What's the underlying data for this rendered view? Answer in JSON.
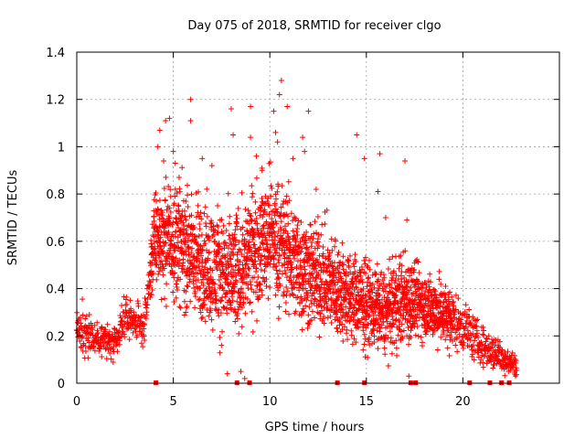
{
  "chart_data": {
    "type": "scatter",
    "title": "Day 075 of 2018, SRMTID for receiver clgo",
    "xlabel": "GPS time / hours",
    "ylabel": "SRMTID / TECUs",
    "xlim": [
      0,
      25
    ],
    "ylim": [
      0,
      1.4
    ],
    "x_ticks": [
      0,
      5,
      10,
      15,
      20
    ],
    "y_ticks": [
      0,
      0.2,
      0.4,
      0.6,
      0.8,
      1,
      1.2,
      1.4
    ],
    "x_tick_labels": [
      "0",
      "5",
      "10",
      "15",
      "20"
    ],
    "y_tick_labels": [
      "0",
      "0.2",
      "0.4",
      "0.6",
      "0.8",
      "1",
      "1.2",
      "1.4"
    ],
    "grid": true,
    "marker": "+",
    "color": "#ff0000",
    "series": [
      {
        "name": "SRMTID",
        "envelope": [
          {
            "x": 0.0,
            "low": 0.1,
            "high": 0.35
          },
          {
            "x": 0.5,
            "low": 0.08,
            "high": 0.34
          },
          {
            "x": 1.0,
            "low": 0.1,
            "high": 0.27
          },
          {
            "x": 1.5,
            "low": 0.08,
            "high": 0.28
          },
          {
            "x": 2.0,
            "low": 0.06,
            "high": 0.24
          },
          {
            "x": 2.5,
            "low": 0.17,
            "high": 0.38
          },
          {
            "x": 3.0,
            "low": 0.17,
            "high": 0.35
          },
          {
            "x": 3.5,
            "low": 0.14,
            "high": 0.32
          },
          {
            "x": 4.0,
            "low": 0.35,
            "high": 0.85
          },
          {
            "x": 5.0,
            "low": 0.3,
            "high": 0.9
          },
          {
            "x": 6.0,
            "low": 0.2,
            "high": 0.85
          },
          {
            "x": 7.0,
            "low": 0.15,
            "high": 0.8
          },
          {
            "x": 8.0,
            "low": 0.1,
            "high": 0.75
          },
          {
            "x": 9.0,
            "low": 0.2,
            "high": 0.85
          },
          {
            "x": 10.0,
            "low": 0.3,
            "high": 0.95
          },
          {
            "x": 11.0,
            "low": 0.2,
            "high": 0.85
          },
          {
            "x": 12.0,
            "low": 0.15,
            "high": 0.75
          },
          {
            "x": 13.0,
            "low": 0.15,
            "high": 0.7
          },
          {
            "x": 14.0,
            "low": 0.1,
            "high": 0.6
          },
          {
            "x": 15.0,
            "low": 0.1,
            "high": 0.55
          },
          {
            "x": 16.0,
            "low": 0.08,
            "high": 0.5
          },
          {
            "x": 17.0,
            "low": 0.1,
            "high": 0.6
          },
          {
            "x": 18.0,
            "low": 0.15,
            "high": 0.5
          },
          {
            "x": 19.0,
            "low": 0.12,
            "high": 0.45
          },
          {
            "x": 20.0,
            "low": 0.1,
            "high": 0.38
          },
          {
            "x": 21.0,
            "low": 0.05,
            "high": 0.25
          },
          {
            "x": 22.0,
            "low": 0.02,
            "high": 0.2
          },
          {
            "x": 22.8,
            "low": 0.02,
            "high": 0.12
          }
        ],
        "highlights": [
          {
            "x": 4.2,
            "y": 1.0
          },
          {
            "x": 4.3,
            "y": 1.07
          },
          {
            "x": 4.5,
            "y": 0.94
          },
          {
            "x": 4.6,
            "y": 1.11
          },
          {
            "x": 4.8,
            "y": 1.12
          },
          {
            "x": 5.0,
            "y": 0.98
          },
          {
            "x": 5.1,
            "y": 0.93
          },
          {
            "x": 5.3,
            "y": 0.87
          },
          {
            "x": 5.9,
            "y": 1.2
          },
          {
            "x": 5.9,
            "y": 1.11
          },
          {
            "x": 6.5,
            "y": 0.95
          },
          {
            "x": 7.0,
            "y": 0.92
          },
          {
            "x": 8.0,
            "y": 1.16
          },
          {
            "x": 8.1,
            "y": 1.05
          },
          {
            "x": 9.0,
            "y": 1.17
          },
          {
            "x": 9.0,
            "y": 1.04
          },
          {
            "x": 9.3,
            "y": 0.96
          },
          {
            "x": 9.6,
            "y": 0.9
          },
          {
            "x": 10.2,
            "y": 1.15
          },
          {
            "x": 10.3,
            "y": 1.06
          },
          {
            "x": 10.4,
            "y": 1.02
          },
          {
            "x": 10.5,
            "y": 1.22
          },
          {
            "x": 10.6,
            "y": 1.28
          },
          {
            "x": 10.9,
            "y": 1.17
          },
          {
            "x": 11.2,
            "y": 0.95
          },
          {
            "x": 11.7,
            "y": 1.04
          },
          {
            "x": 11.8,
            "y": 0.98
          },
          {
            "x": 12.0,
            "y": 1.15
          },
          {
            "x": 12.4,
            "y": 0.82
          },
          {
            "x": 14.5,
            "y": 1.05
          },
          {
            "x": 14.9,
            "y": 0.95
          },
          {
            "x": 15.6,
            "y": 0.81
          },
          {
            "x": 15.7,
            "y": 0.97
          },
          {
            "x": 16.0,
            "y": 0.7
          },
          {
            "x": 17.0,
            "y": 0.94
          },
          {
            "x": 17.1,
            "y": 0.69
          },
          {
            "x": 8.7,
            "y": 0.02
          },
          {
            "x": 8.5,
            "y": 0.05
          },
          {
            "x": 17.2,
            "y": 0.03
          },
          {
            "x": 7.8,
            "y": 0.04
          }
        ],
        "zero_markers_x": [
          4.1,
          8.3,
          8.95,
          13.5,
          14.9,
          17.3,
          17.55,
          20.35,
          21.4,
          22.0,
          22.4
        ]
      }
    ]
  }
}
